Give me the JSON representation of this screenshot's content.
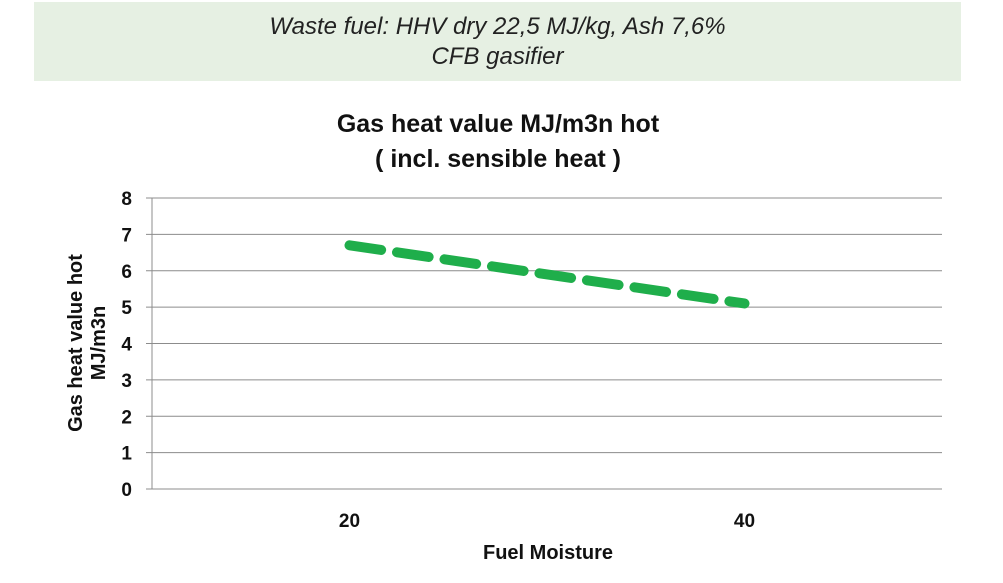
{
  "banner": {
    "line1": "Waste fuel: HHV dry 22,5 MJ/kg, Ash 7,6%",
    "line2": "CFB gasifier"
  },
  "chart_data": {
    "type": "line",
    "title": "Gas heat value MJ/m3n hot",
    "subtitle": "( incl. sensible heat )",
    "xlabel": "Fuel Moisture",
    "ylabel_line1": "Gas heat value hot",
    "ylabel_line2": "MJ/m3n",
    "x_ticks": [
      "20",
      "40"
    ],
    "y_ticks": [
      "0",
      "1",
      "2",
      "3",
      "4",
      "5",
      "6",
      "7",
      "8"
    ],
    "xlim": [
      10,
      50
    ],
    "ylim": [
      0,
      8
    ],
    "grid": true,
    "legend": "none",
    "series": [
      {
        "x": [
          20,
          40
        ],
        "y": [
          6.7,
          5.1
        ],
        "color": "#1fae4b",
        "style": "dashed"
      }
    ]
  }
}
